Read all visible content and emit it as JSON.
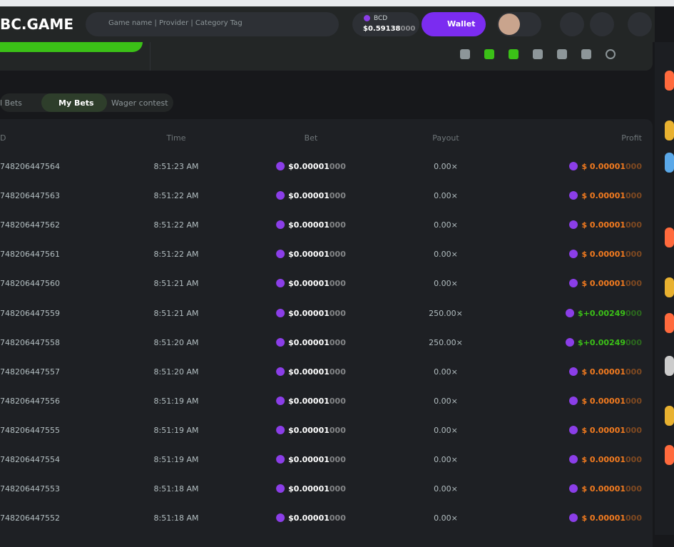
{
  "header": {
    "logo": "BC.GAME",
    "search_placeholder": "Game name | Provider | Category Tag",
    "currency": "BCD",
    "balance": [
      "$0.59138",
      "000"
    ],
    "wallet": "Wallet"
  },
  "tabs": [
    "l Bets",
    "My Bets",
    "Wager contest"
  ],
  "table": {
    "columns": [
      "D",
      "Time",
      "Bet",
      "Payout",
      "Profit"
    ],
    "rows": [
      {
        "id": "748206447564",
        "time": "8:51:23 AM",
        "bet": [
          "$0.00001",
          "000"
        ],
        "payout": "0.00×",
        "profit": [
          "$ 0.00001",
          "000"
        ],
        "profit_color": "#f37b1f"
      },
      {
        "id": "748206447563",
        "time": "8:51:22 AM",
        "bet": [
          "$0.00001",
          "000"
        ],
        "payout": "0.00×",
        "profit": [
          "$ 0.00001",
          "000"
        ],
        "profit_color": "#f37b1f"
      },
      {
        "id": "748206447562",
        "time": "8:51:22 AM",
        "bet": [
          "$0.00001",
          "000"
        ],
        "payout": "0.00×",
        "profit": [
          "$ 0.00001",
          "000"
        ],
        "profit_color": "#f37b1f"
      },
      {
        "id": "748206447561",
        "time": "8:51:22 AM",
        "bet": [
          "$0.00001",
          "000"
        ],
        "payout": "0.00×",
        "profit": [
          "$ 0.00001",
          "000"
        ],
        "profit_color": "#f37b1f"
      },
      {
        "id": "748206447560",
        "time": "8:51:21 AM",
        "bet": [
          "$0.00001",
          "000"
        ],
        "payout": "0.00×",
        "profit": [
          "$ 0.00001",
          "000"
        ],
        "profit_color": "#f37b1f"
      },
      {
        "id": "748206447559",
        "time": "8:51:21 AM",
        "bet": [
          "$0.00001",
          "000"
        ],
        "payout": "250.00×",
        "profit": [
          "$+0.00249",
          "000"
        ],
        "profit_color": "#3bc117"
      },
      {
        "id": "748206447558",
        "time": "8:51:20 AM",
        "bet": [
          "$0.00001",
          "000"
        ],
        "payout": "250.00×",
        "profit": [
          "$+0.00249",
          "000"
        ],
        "profit_color": "#3bc117"
      },
      {
        "id": "748206447557",
        "time": "8:51:20 AM",
        "bet": [
          "$0.00001",
          "000"
        ],
        "payout": "0.00×",
        "profit": [
          "$ 0.00001",
          "000"
        ],
        "profit_color": "#f37b1f"
      },
      {
        "id": "748206447556",
        "time": "8:51:19 AM",
        "bet": [
          "$0.00001",
          "000"
        ],
        "payout": "0.00×",
        "profit": [
          "$ 0.00001",
          "000"
        ],
        "profit_color": "#f37b1f"
      },
      {
        "id": "748206447555",
        "time": "8:51:19 AM",
        "bet": [
          "$0.00001",
          "000"
        ],
        "payout": "0.00×",
        "profit": [
          "$ 0.00001",
          "000"
        ],
        "profit_color": "#f37b1f"
      },
      {
        "id": "748206447554",
        "time": "8:51:19 AM",
        "bet": [
          "$0.00001",
          "000"
        ],
        "payout": "0.00×",
        "profit": [
          "$ 0.00001",
          "000"
        ],
        "profit_color": "#f37b1f"
      },
      {
        "id": "748206447553",
        "time": "8:51:18 AM",
        "bet": [
          "$0.00001",
          "000"
        ],
        "payout": "0.00×",
        "profit": [
          "$ 0.00001",
          "000"
        ],
        "profit_color": "#f37b1f"
      },
      {
        "id": "748206447552",
        "time": "8:51:18 AM",
        "bet": [
          "$0.00001",
          "000"
        ],
        "payout": "0.00×",
        "profit": [
          "$ 0.00001",
          "000"
        ],
        "profit_color": "#f37b1f"
      }
    ]
  }
}
